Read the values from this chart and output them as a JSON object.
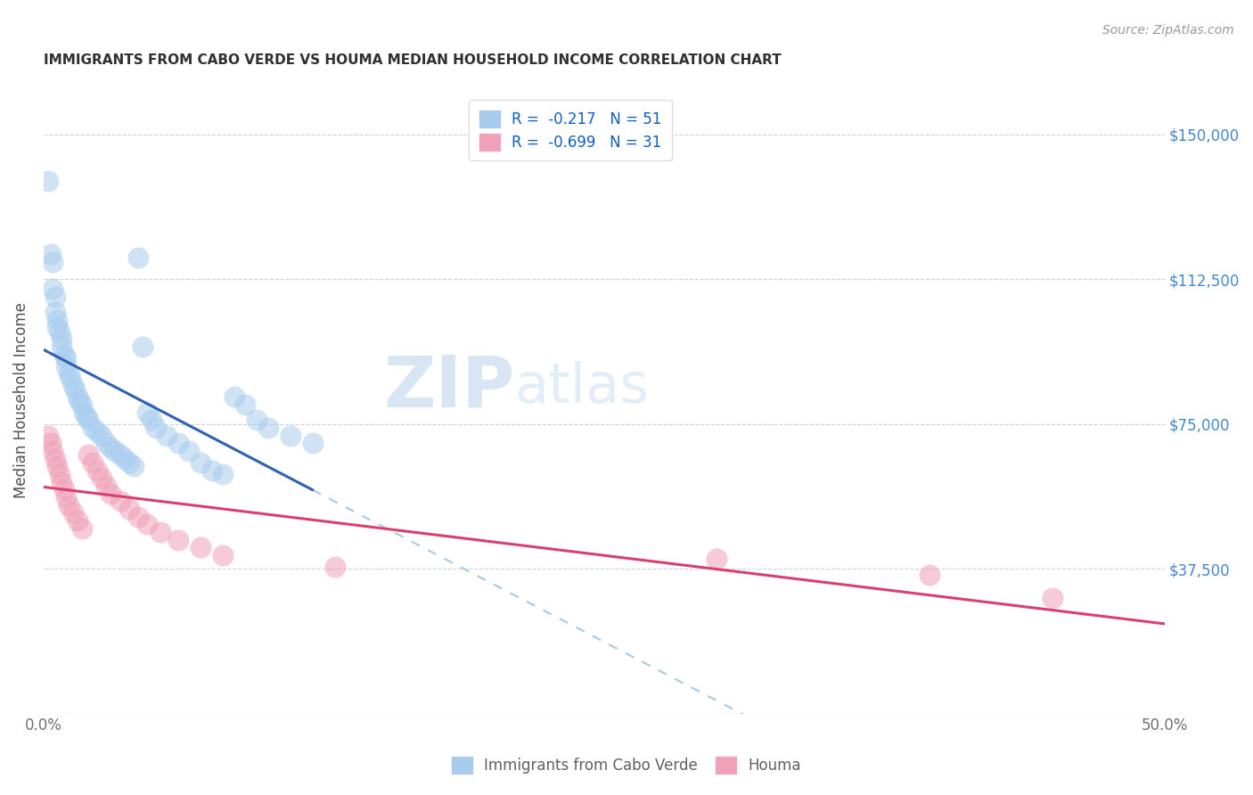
{
  "title": "IMMIGRANTS FROM CABO VERDE VS HOUMA MEDIAN HOUSEHOLD INCOME CORRELATION CHART",
  "source": "Source: ZipAtlas.com",
  "ylabel": "Median Household Income",
  "xlim": [
    0.0,
    0.5
  ],
  "ylim": [
    0,
    162500
  ],
  "yticks": [
    0,
    37500,
    75000,
    112500,
    150000
  ],
  "ytick_labels_right": [
    "",
    "$37,500",
    "$75,000",
    "$112,500",
    "$150,000"
  ],
  "xticks": [
    0.0,
    0.1,
    0.2,
    0.3,
    0.4,
    0.5
  ],
  "xtick_labels": [
    "0.0%",
    "",
    "",
    "",
    "",
    "50.0%"
  ],
  "legend_label1": "R =  -0.217   N = 51",
  "legend_label2": "R =  -0.699   N = 31",
  "legend_series1": "Immigrants from Cabo Verde",
  "legend_series2": "Houma",
  "color_blue": "#A8CCEE",
  "color_pink": "#F0A0B8",
  "color_line_blue": "#3060B0",
  "color_line_pink": "#D84070",
  "color_line_dashed": "#AAC8E0",
  "watermark_zip": "ZIP",
  "watermark_atlas": "atlas",
  "background_color": "#ffffff",
  "grid_color": "#c8d4dc",
  "title_color": "#303030",
  "right_tick_color": "#4488CC",
  "cabo_verde_x": [
    0.002,
    0.003,
    0.004,
    0.004,
    0.005,
    0.005,
    0.006,
    0.006,
    0.007,
    0.008,
    0.008,
    0.009,
    0.01,
    0.01,
    0.011,
    0.012,
    0.013,
    0.014,
    0.015,
    0.016,
    0.017,
    0.018,
    0.019,
    0.02,
    0.022,
    0.024,
    0.026,
    0.028,
    0.03,
    0.032,
    0.034,
    0.036,
    0.038,
    0.04,
    0.042,
    0.044,
    0.046,
    0.048,
    0.05,
    0.055,
    0.06,
    0.065,
    0.07,
    0.075,
    0.08,
    0.085,
    0.09,
    0.095,
    0.1,
    0.11,
    0.12
  ],
  "cabo_verde_y": [
    138000,
    119000,
    117000,
    110000,
    108000,
    104000,
    102000,
    100000,
    99000,
    97000,
    95000,
    93000,
    92000,
    90000,
    88000,
    87000,
    85000,
    84000,
    82000,
    81000,
    80000,
    78000,
    77000,
    76000,
    74000,
    73000,
    72000,
    70000,
    69000,
    68000,
    67000,
    66000,
    65000,
    64000,
    118000,
    95000,
    78000,
    76000,
    74000,
    72000,
    70000,
    68000,
    65000,
    63000,
    62000,
    82000,
    80000,
    76000,
    74000,
    72000,
    70000
  ],
  "houma_x": [
    0.002,
    0.003,
    0.004,
    0.005,
    0.006,
    0.007,
    0.008,
    0.009,
    0.01,
    0.011,
    0.013,
    0.015,
    0.017,
    0.02,
    0.022,
    0.024,
    0.026,
    0.028,
    0.03,
    0.034,
    0.038,
    0.042,
    0.046,
    0.052,
    0.06,
    0.07,
    0.08,
    0.13,
    0.3,
    0.395,
    0.45
  ],
  "houma_y": [
    72000,
    70000,
    68000,
    66000,
    64000,
    62000,
    60000,
    58000,
    56000,
    54000,
    52000,
    50000,
    48000,
    67000,
    65000,
    63000,
    61000,
    59000,
    57000,
    55000,
    53000,
    51000,
    49000,
    47000,
    45000,
    43000,
    41000,
    38000,
    40000,
    36000,
    30000
  ]
}
